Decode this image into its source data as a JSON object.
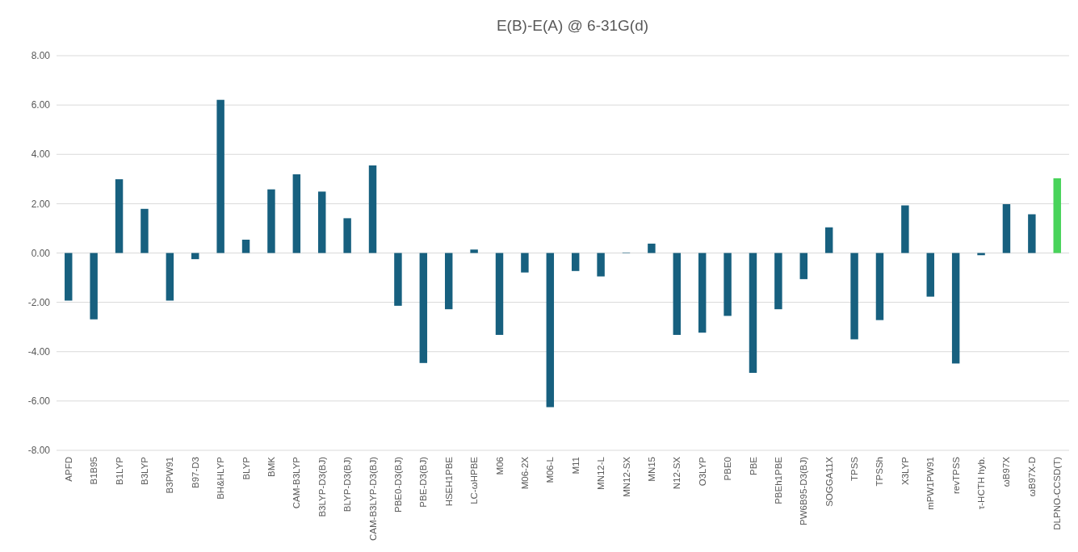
{
  "chart_data": {
    "type": "bar",
    "title": "E(B)-E(A) @ 6-31G(d)",
    "categories": [
      "APFD",
      "B1B95",
      "B1LYP",
      "B3LYP",
      "B3PW91",
      "B97-D3",
      "BH&HLYP",
      "BLYP",
      "BMK",
      "CAM-B3LYP",
      "B3LYP-D3(BJ)",
      "BLYP-D3(BJ)",
      "CAM-B3LYP-D3(BJ)",
      "PBE0-D3(BJ)",
      "PBE-D3(BJ)",
      "HSEH1PBE",
      "LC-ωHPBE",
      "M06",
      "M06-2X",
      "M06-L",
      "M11",
      "MN12-L",
      "MN12-SX",
      "MN15",
      "N12-SX",
      "O3LYP",
      "PBE0",
      "PBE",
      "PBEh1PBE",
      "PW6B95-D3(BJ)",
      "SOGGA11X",
      "TPSS",
      "TPSSh",
      "X3LYP",
      "mPW1PW91",
      "revTPSS",
      "τ-HCTH hyb.",
      "ωB97X",
      "ωB97X-D",
      "DLPNO-CCSD(T)"
    ],
    "values": [
      -1.93,
      -2.69,
      2.99,
      1.79,
      -1.93,
      -0.25,
      6.21,
      0.54,
      2.58,
      3.19,
      2.49,
      1.41,
      3.55,
      -2.14,
      -4.46,
      -2.28,
      0.14,
      -3.32,
      -0.79,
      -6.25,
      -0.73,
      -0.95,
      0.02,
      0.38,
      -3.32,
      -3.23,
      -2.55,
      -4.86,
      -2.28,
      -1.06,
      1.04,
      -3.5,
      -2.72,
      1.93,
      -1.77,
      -4.48,
      -0.09,
      1.98,
      1.57,
      3.03
    ],
    "colors": [
      "#17607f",
      "#17607f",
      "#17607f",
      "#17607f",
      "#17607f",
      "#17607f",
      "#17607f",
      "#17607f",
      "#17607f",
      "#17607f",
      "#17607f",
      "#17607f",
      "#17607f",
      "#17607f",
      "#17607f",
      "#17607f",
      "#17607f",
      "#17607f",
      "#17607f",
      "#17607f",
      "#17607f",
      "#17607f",
      "#17607f",
      "#17607f",
      "#17607f",
      "#17607f",
      "#17607f",
      "#17607f",
      "#17607f",
      "#17607f",
      "#17607f",
      "#17607f",
      "#17607f",
      "#17607f",
      "#17607f",
      "#17607f",
      "#17607f",
      "#17607f",
      "#17607f",
      "#48d35a"
    ],
    "ylim": [
      -8,
      8
    ],
    "yticks": [
      {
        "value": -8,
        "label": "-8.00"
      },
      {
        "value": -6,
        "label": "-6.00"
      },
      {
        "value": -4,
        "label": "-4.00"
      },
      {
        "value": -2,
        "label": "-2.00"
      },
      {
        "value": 0,
        "label": "0.00"
      },
      {
        "value": 2,
        "label": "2.00"
      },
      {
        "value": 4,
        "label": "4.00"
      },
      {
        "value": 6,
        "label": "6.00"
      },
      {
        "value": 8,
        "label": "8.00"
      }
    ],
    "grid": "y"
  }
}
